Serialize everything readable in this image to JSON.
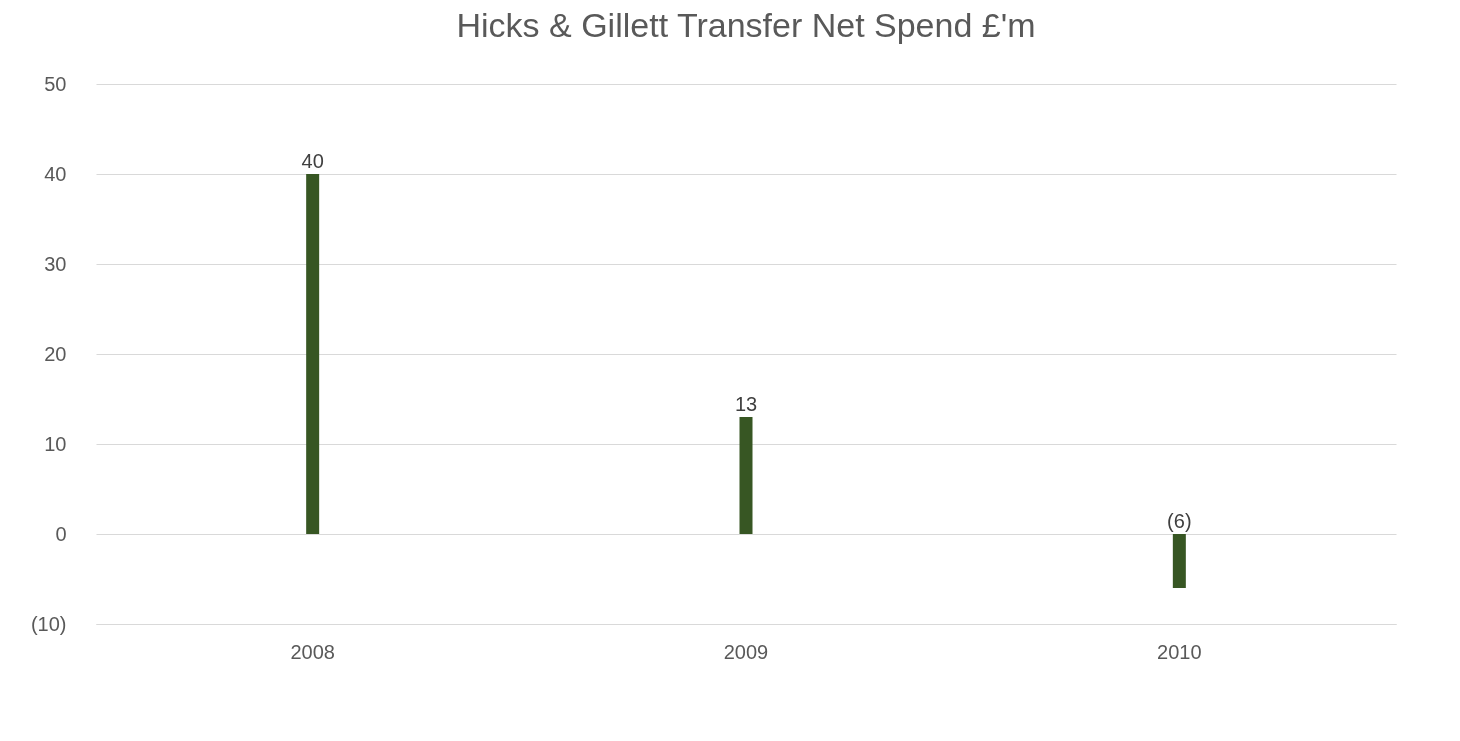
{
  "chart_data": {
    "type": "bar",
    "title": "Hicks & Gillett Transfer Net Spend £'m",
    "categories": [
      "2008",
      "2009",
      "2010"
    ],
    "values": [
      40,
      13,
      -6
    ],
    "color": "#375623",
    "value_labels": [
      "40",
      "13",
      "(6)"
    ],
    "ylim": [
      -10,
      50
    ],
    "yticks": [
      {
        "value": -10,
        "label": "(10)"
      },
      0,
      10,
      20,
      30,
      40,
      50
    ],
    "grid": "y"
  }
}
